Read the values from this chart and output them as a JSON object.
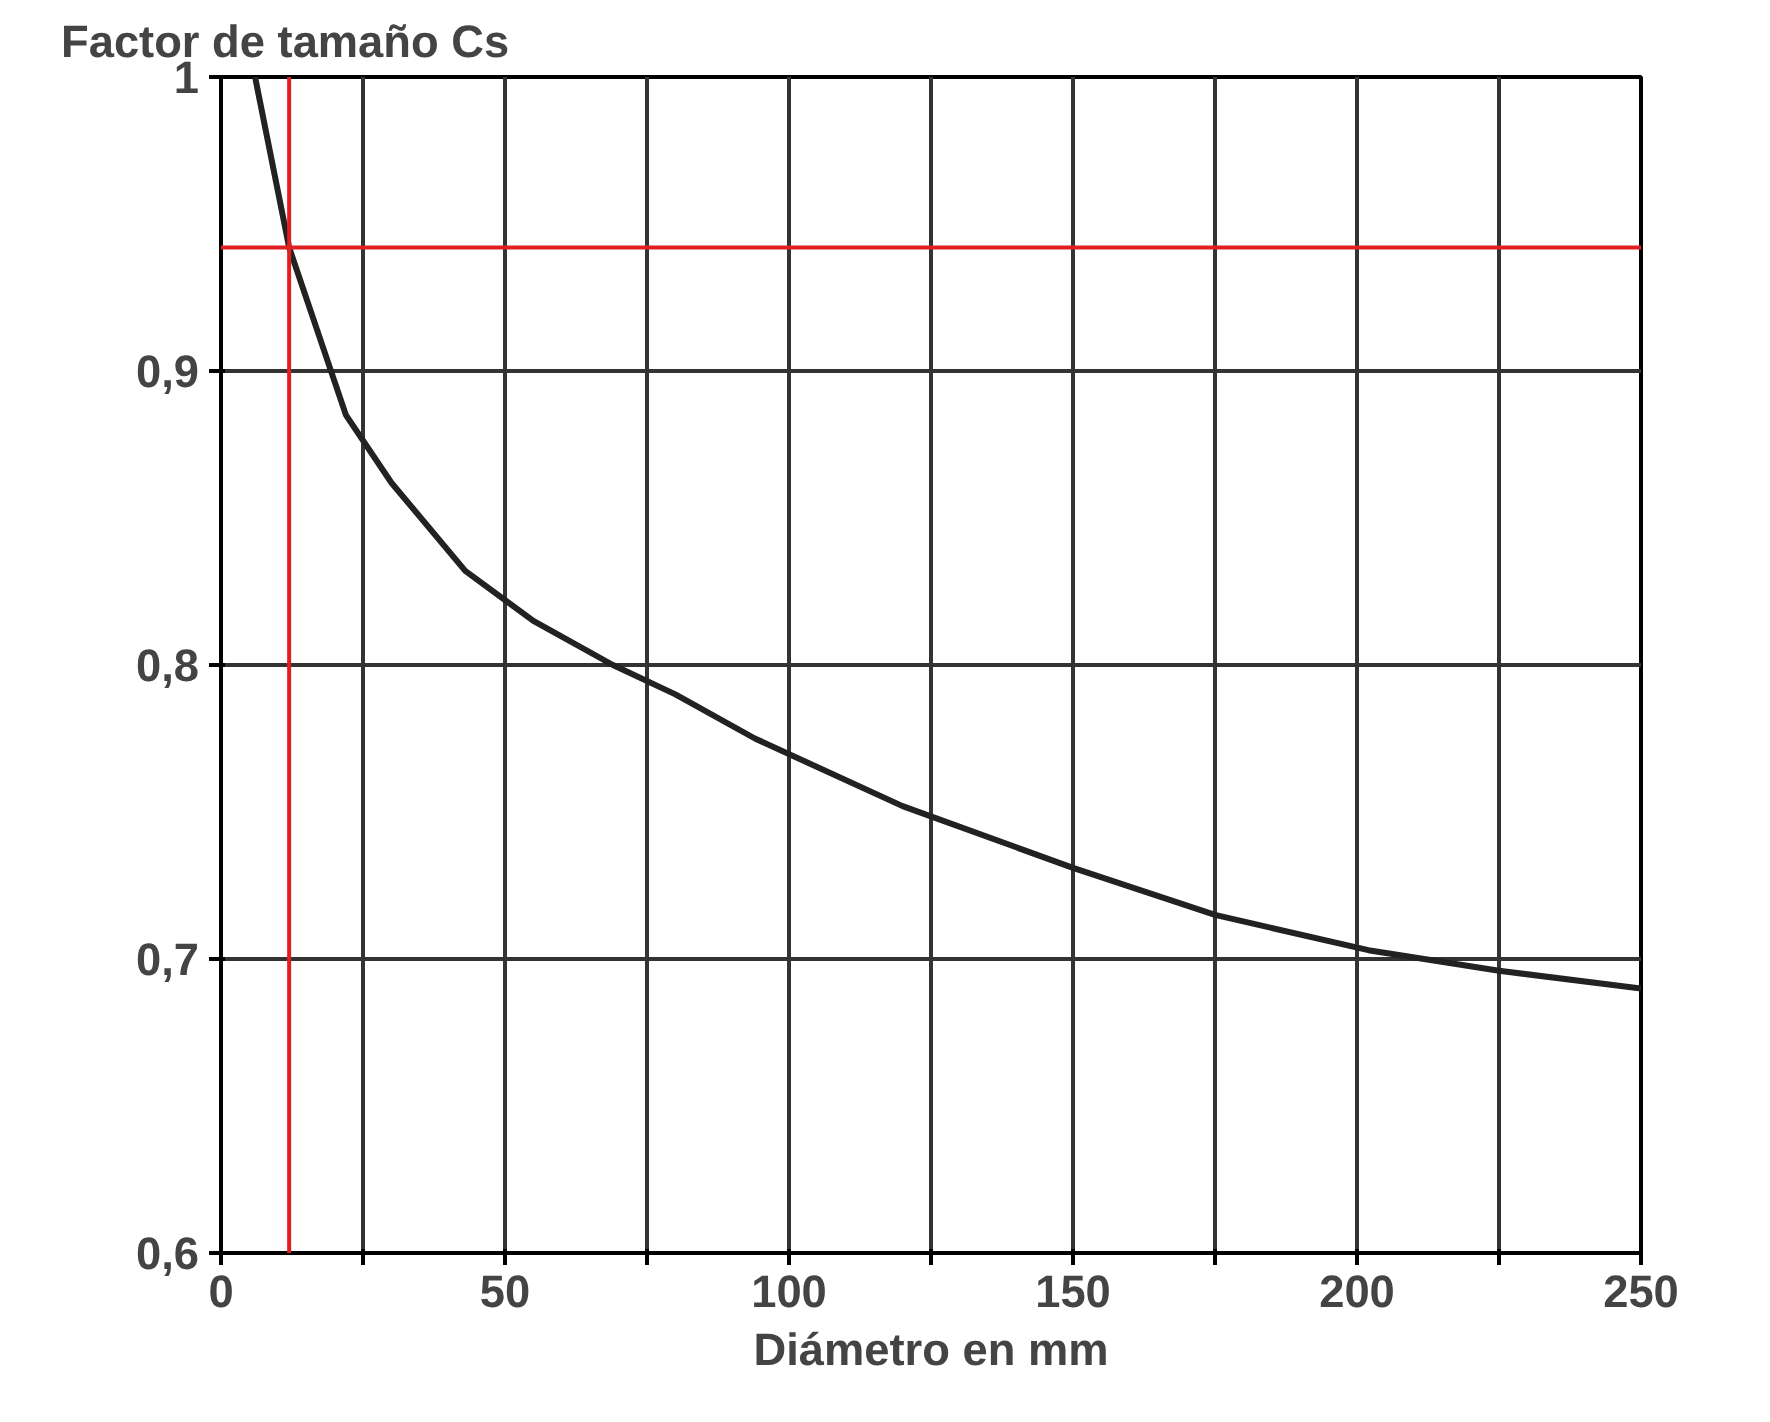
{
  "chart_data": {
    "type": "line",
    "ylabel": "Factor de tamaño Cs",
    "xlabel": "Diámetro en mm",
    "x": [
      6,
      12,
      22,
      30,
      43,
      55,
      69,
      80,
      94,
      120,
      150,
      175,
      202,
      225,
      250
    ],
    "series": [
      {
        "color": "#222222",
        "values": [
          1.0,
          0.942,
          0.885,
          0.862,
          0.832,
          0.815,
          0.8,
          0.79,
          0.775,
          0.752,
          0.731,
          0.715,
          0.703,
          0.696,
          0.69
        ]
      }
    ],
    "xlim": [
      0,
      250
    ],
    "ylim": [
      0.6,
      1
    ],
    "xticks": [
      0,
      {
        "value": 25,
        "label": null
      },
      50,
      {
        "value": 75,
        "label": null
      },
      100,
      {
        "value": 125,
        "label": null
      },
      150,
      {
        "value": 175,
        "label": null
      },
      200,
      {
        "value": 225,
        "label": null
      },
      250
    ],
    "yticks": [
      {
        "value": 0.6,
        "label": "0,6"
      },
      {
        "value": 0.7,
        "label": "0,7"
      },
      {
        "value": 0.8,
        "label": "0,8"
      },
      {
        "value": 0.9,
        "label": "0,9"
      },
      1
    ],
    "ref_lines": [
      {
        "axis": "x",
        "value": 12,
        "color": "#e02020"
      },
      {
        "axis": "y",
        "value": 0.942,
        "color": "#e02020"
      }
    ],
    "grid": true,
    "line_style": "solid"
  }
}
